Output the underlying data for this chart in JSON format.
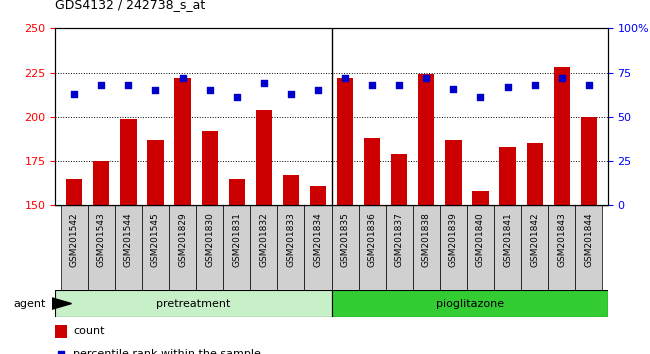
{
  "title": "GDS4132 / 242738_s_at",
  "samples": [
    "GSM201542",
    "GSM201543",
    "GSM201544",
    "GSM201545",
    "GSM201829",
    "GSM201830",
    "GSM201831",
    "GSM201832",
    "GSM201833",
    "GSM201834",
    "GSM201835",
    "GSM201836",
    "GSM201837",
    "GSM201838",
    "GSM201839",
    "GSM201840",
    "GSM201841",
    "GSM201842",
    "GSM201843",
    "GSM201844"
  ],
  "counts": [
    165,
    175,
    199,
    187,
    222,
    192,
    165,
    204,
    167,
    161,
    222,
    188,
    179,
    224,
    187,
    158,
    183,
    185,
    228,
    200
  ],
  "percentiles": [
    63,
    68,
    68,
    65,
    72,
    65,
    61,
    69,
    63,
    65,
    72,
    68,
    68,
    72,
    66,
    61,
    67,
    68,
    72,
    68
  ],
  "ylim_left": [
    150,
    250
  ],
  "ylim_right": [
    0,
    100
  ],
  "yticks_left": [
    150,
    175,
    200,
    225,
    250
  ],
  "yticks_right": [
    0,
    25,
    50,
    75,
    100
  ],
  "bar_color": "#CC0000",
  "dot_color": "#0000CC",
  "plot_bg": "#FFFFFF",
  "tick_area_bg": "#D0D0D0",
  "pretreatment_color_light": "#C8F0C8",
  "pretreatment_color_dark": "#44DD44",
  "pioglitazone_color": "#33CC33",
  "pretreatment_label": "pretreatment",
  "pioglitazone_label": "pioglitazone",
  "agent_label": "agent",
  "legend_count": "count",
  "legend_percentile": "percentile rank within the sample",
  "n_pretreatment": 10,
  "n_pioglitazone": 10
}
